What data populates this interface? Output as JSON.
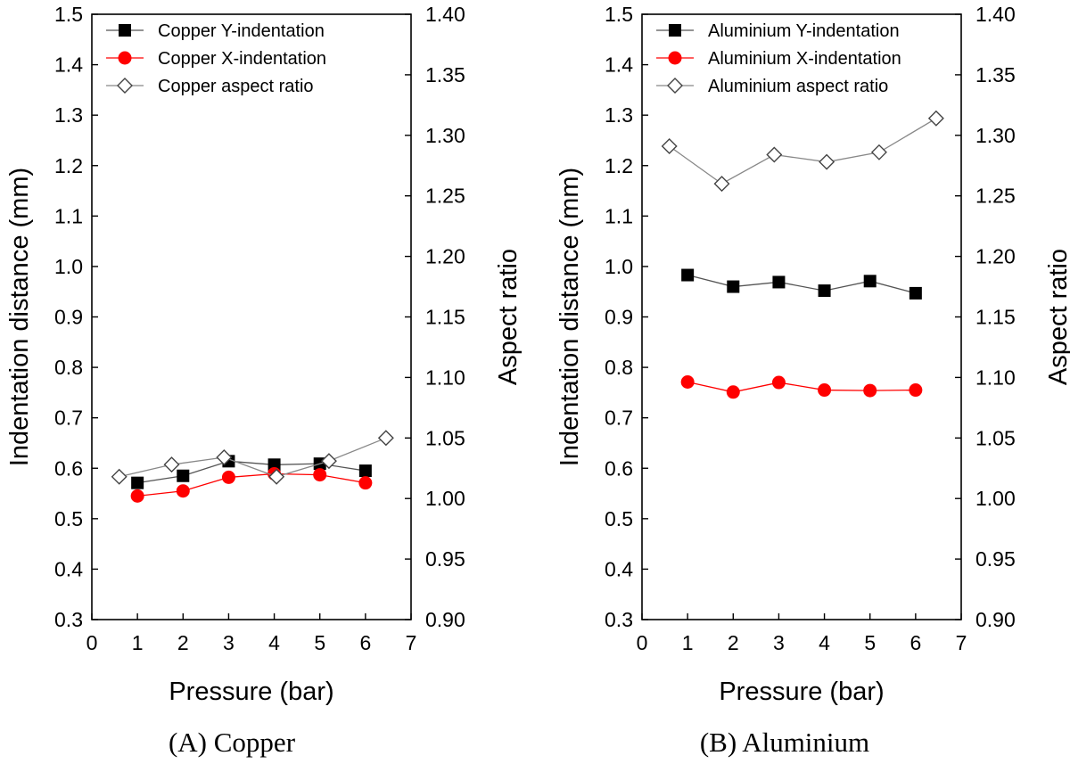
{
  "chart_data": [
    {
      "type": "line",
      "caption": "(A) Copper",
      "xlabel": "Pressure (bar)",
      "ylabel_left": "Indentation distance (mm)",
      "ylabel_right": "Aspect ratio",
      "xlim": [
        0,
        7
      ],
      "ylim_left": [
        0.3,
        1.5
      ],
      "ylim_right": [
        0.9,
        1.4
      ],
      "xticks": [
        "0",
        "1",
        "2",
        "3",
        "4",
        "5",
        "6",
        "7"
      ],
      "yticks_left": [
        "0.3",
        "0.4",
        "0.5",
        "0.6",
        "0.7",
        "0.8",
        "0.9",
        "1.0",
        "1.1",
        "1.2",
        "1.3",
        "1.4",
        "1.5"
      ],
      "yticks_right": [
        "0.90",
        "0.95",
        "1.00",
        "1.05",
        "1.10",
        "1.15",
        "1.20",
        "1.25",
        "1.30",
        "1.35",
        "1.40"
      ],
      "legend_position": "top-left",
      "series": [
        {
          "name": "Copper Y-indentation",
          "axis": "left",
          "marker": "square",
          "color": "#000000",
          "line_color": "#555555",
          "x": [
            1,
            2,
            3,
            4,
            5,
            6
          ],
          "y": [
            0.571,
            0.585,
            0.614,
            0.607,
            0.609,
            0.595
          ]
        },
        {
          "name": "Copper X-indentation",
          "axis": "left",
          "marker": "circle",
          "color": "#ff0000",
          "line_color": "#ff0000",
          "x": [
            1,
            2,
            3,
            4,
            5,
            6
          ],
          "y": [
            0.545,
            0.555,
            0.582,
            0.589,
            0.587,
            0.571
          ]
        },
        {
          "name": "Copper aspect ratio",
          "axis": "right",
          "marker": "diamond",
          "color": "#000000",
          "line_color": "#888888",
          "x": [
            0.6,
            1.75,
            2.9,
            4.05,
            5.2,
            6.45
          ],
          "y": [
            1.018,
            1.028,
            1.034,
            1.018,
            1.031,
            1.05
          ]
        }
      ]
    },
    {
      "type": "line",
      "caption": "(B) Aluminium",
      "xlabel": "Pressure (bar)",
      "ylabel_left": "Indentation distance (mm)",
      "ylabel_right": "Aspect ratio",
      "xlim": [
        0,
        7
      ],
      "ylim_left": [
        0.3,
        1.5
      ],
      "ylim_right": [
        0.9,
        1.4
      ],
      "xticks": [
        "0",
        "1",
        "2",
        "3",
        "4",
        "5",
        "6",
        "7"
      ],
      "yticks_left": [
        "0.3",
        "0.4",
        "0.5",
        "0.6",
        "0.7",
        "0.8",
        "0.9",
        "1.0",
        "1.1",
        "1.2",
        "1.3",
        "1.4",
        "1.5"
      ],
      "yticks_right": [
        "0.90",
        "0.95",
        "1.00",
        "1.05",
        "1.10",
        "1.15",
        "1.20",
        "1.25",
        "1.30",
        "1.35",
        "1.40"
      ],
      "legend_position": "top-left",
      "series": [
        {
          "name": "Aluminium Y-indentation",
          "axis": "left",
          "marker": "square",
          "color": "#000000",
          "line_color": "#555555",
          "x": [
            1,
            2,
            3,
            4,
            5,
            6
          ],
          "y": [
            0.983,
            0.96,
            0.969,
            0.952,
            0.971,
            0.947
          ]
        },
        {
          "name": "Aluminium X-indentation",
          "axis": "left",
          "marker": "circle",
          "color": "#ff0000",
          "line_color": "#ff0000",
          "x": [
            1,
            2,
            3,
            4,
            5,
            6
          ],
          "y": [
            0.771,
            0.751,
            0.77,
            0.755,
            0.754,
            0.755
          ]
        },
        {
          "name": "Aluminium aspect ratio",
          "axis": "right",
          "marker": "diamond",
          "color": "#000000",
          "line_color": "#888888",
          "x": [
            0.6,
            1.75,
            2.9,
            4.05,
            5.2,
            6.45
          ],
          "y": [
            1.291,
            1.26,
            1.284,
            1.278,
            1.286,
            1.314
          ]
        }
      ]
    }
  ]
}
